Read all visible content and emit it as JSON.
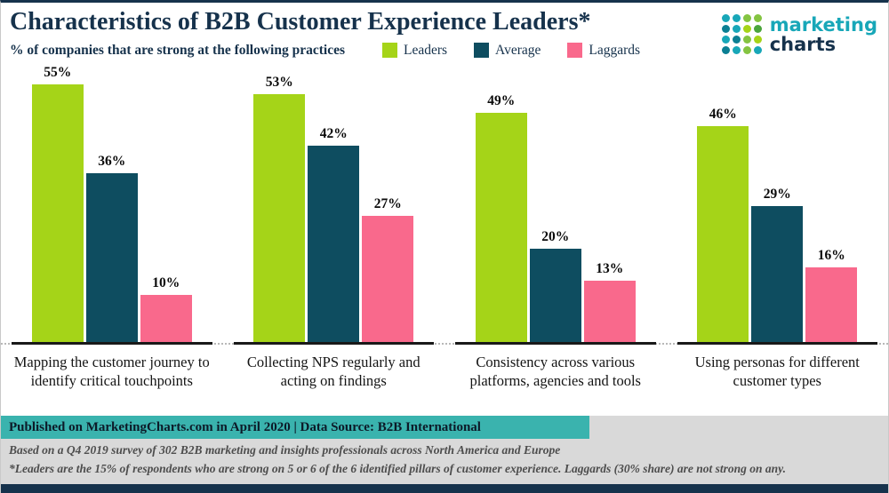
{
  "colors": {
    "navy": "#16324c",
    "band_teal": "#3ab3ae",
    "gray_bg": "#d9d9d9",
    "note_text": "#4d4d4d",
    "logo_teal": "#18a7b8"
  },
  "logo": {
    "word1": "marketing",
    "word2": "charts"
  },
  "chart_data": {
    "type": "bar",
    "title": "Characteristics of B2B Customer Experience Leaders*",
    "subtitle": "% of companies that are strong at the following practices",
    "categories": [
      "Mapping the customer journey to identify critical touchpoints",
      "Collecting NPS regularly and acting on findings",
      "Consistency across various platforms, agencies and tools",
      "Using personas for different customer types"
    ],
    "series": [
      {
        "name": "Leaders",
        "color": "#a5d418",
        "values": [
          55,
          53,
          49,
          46
        ]
      },
      {
        "name": "Average",
        "color": "#0e4d60",
        "values": [
          36,
          42,
          20,
          29
        ]
      },
      {
        "name": "Laggards",
        "color": "#f9698c",
        "values": [
          10,
          27,
          13,
          16
        ]
      }
    ],
    "value_suffix": "%",
    "ylim": [
      0,
      55
    ],
    "grid": false,
    "legend_position": "top"
  },
  "footer": {
    "published": "Published on MarketingCharts.com in April 2020 | Data Source: B2B International",
    "note1": "Based on a Q4 2019 survey of 302 B2B marketing and insights professionals across North America and Europe",
    "note2": "*Leaders are the 15% of respondents who are strong on 5 or 6 of the 6 identified pillars of customer experience. Laggards (30% share) are not strong on any."
  }
}
